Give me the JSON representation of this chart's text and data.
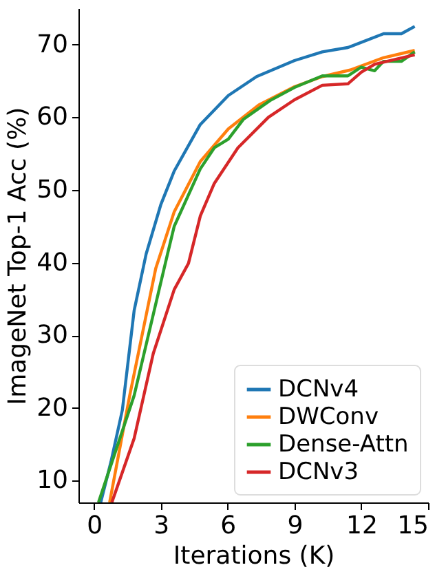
{
  "chart_data": {
    "type": "line",
    "xlabel": "Iterations (K)",
    "ylabel": "ImageNet Top-1 Acc (%)",
    "xlim": [
      -0.7,
      15
    ],
    "ylim": [
      7,
      75
    ],
    "xticks": [
      0,
      3,
      6,
      9,
      12,
      15
    ],
    "yticks": [
      10,
      20,
      30,
      40,
      50,
      60,
      70
    ],
    "grid": false,
    "legend": "bottom right",
    "marker": "none",
    "line_style": "solid",
    "series": [
      {
        "name": "DCNv4",
        "color": "#1f77b4",
        "x": [
          0.3,
          0.76,
          1.27,
          1.8,
          2.34,
          3.0,
          3.6,
          4.77,
          6.03,
          7.3,
          9.0,
          10.25,
          11.4,
          13.0,
          13.8,
          14.4
        ],
        "values": [
          7,
          12.6,
          19.7,
          33.4,
          41.2,
          48,
          52.6,
          59,
          63,
          65.6,
          67.8,
          69,
          69.6,
          71.5,
          71.5,
          72.5
        ]
      },
      {
        "name": "DWConv",
        "color": "#ff7f0e",
        "x": [
          0.7,
          1.6,
          2.77,
          3.6,
          4.77,
          6.03,
          7.4,
          9.0,
          10.25,
          11.5,
          13.0,
          14.4
        ],
        "values": [
          7,
          21.7,
          39.2,
          47,
          53.9,
          58.4,
          61.7,
          64.2,
          65.6,
          66.5,
          68.2,
          69.2
        ]
      },
      {
        "name": "Dense-Attn",
        "color": "#2ca02c",
        "x": [
          0.2,
          1.8,
          3.3,
          3.6,
          4.77,
          5.4,
          6.03,
          6.7,
          7.9,
          9.0,
          10.25,
          11.4,
          12.0,
          12.6,
          13.0,
          13.8,
          14.4
        ],
        "values": [
          7,
          21.7,
          41.2,
          45,
          52.9,
          55.8,
          57,
          59.7,
          62.3,
          64.1,
          65.7,
          65.7,
          66.9,
          66.4,
          67.7,
          67.7,
          69
        ]
      },
      {
        "name": "DCNv3",
        "color": "#d62728",
        "x": [
          0.8,
          1.8,
          2.66,
          3.6,
          4.24,
          4.77,
          5.4,
          6.46,
          7.83,
          9.0,
          10.25,
          11.4,
          12.0,
          12.6,
          14.4
        ],
        "values": [
          7,
          15.8,
          27.5,
          36.3,
          39.9,
          46.4,
          50.9,
          55.8,
          60,
          62.4,
          64.4,
          64.6,
          66.2,
          67.3,
          68.6
        ]
      }
    ]
  }
}
